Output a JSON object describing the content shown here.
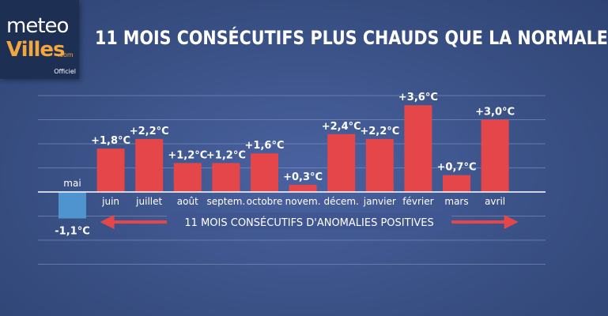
{
  "logo": {
    "line1": "meteo",
    "line2": "Villes",
    "line3": ".com",
    "badge": "Officiel"
  },
  "colors": {
    "positive_bar": "#e5464a",
    "negative_bar": "#4f93cf",
    "arrow": "#e5464a",
    "gridline": "#8a9cc4",
    "background": "#3d5488"
  },
  "chart_data": {
    "type": "bar",
    "title": "11 MOIS CONSÉCUTIFS PLUS CHAUDS QUE LA NORMALE",
    "xlabel": "",
    "ylabel": "",
    "categories": [
      "mai",
      "juin",
      "juillet",
      "août",
      "septem.",
      "octobre",
      "novem.",
      "décem.",
      "janvier",
      "février",
      "mars",
      "avril"
    ],
    "values": [
      -1.1,
      1.8,
      2.2,
      1.2,
      1.2,
      1.6,
      0.3,
      2.4,
      2.2,
      3.6,
      0.7,
      3.0
    ],
    "value_labels": [
      "-1,1°C",
      "+1,8°C",
      "+2,2°C",
      "+1,2°C",
      "+1,2°C",
      "+1,6°C",
      "+0,3°C",
      "+2,4°C",
      "+2,2°C",
      "+3,6°C",
      "+0,7°C",
      "+3,0°C"
    ],
    "ylim": [
      -3,
      4
    ],
    "grid": true,
    "annotation": {
      "text": "11 MOIS CONSÉCUTIFS D'ANOMALIES POSITIVES",
      "from_category": "juin",
      "to_category": "avril"
    }
  }
}
